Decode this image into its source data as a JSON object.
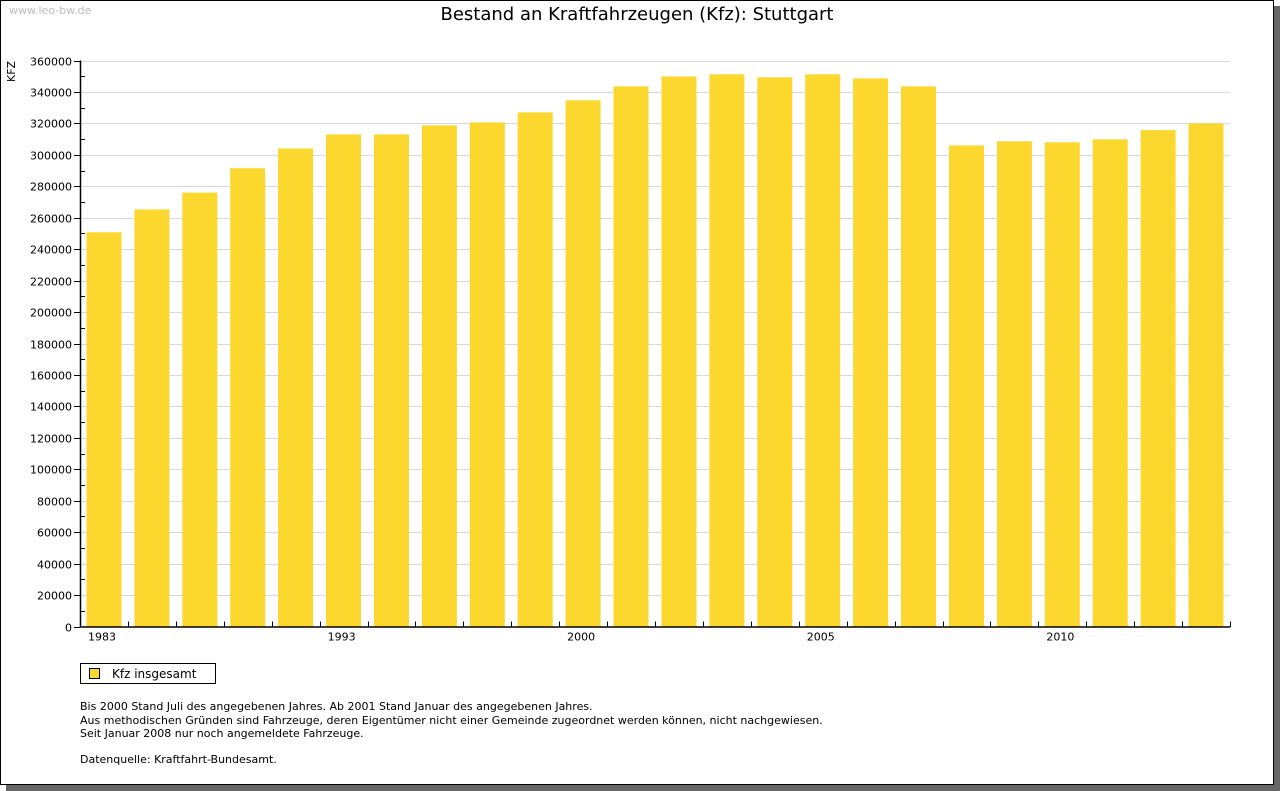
{
  "watermark": "www.leo-bw.de",
  "colors": {
    "bar": "#FCD72E",
    "grid": "#D9D9D9",
    "axis": "#000000",
    "shadow": "#666666"
  },
  "chart_data": {
    "type": "bar",
    "title": "Bestand an Kraftfahrzeugen (Kfz): Stuttgart",
    "xlabel": "",
    "ylabel": "KFZ",
    "ylim": [
      0,
      360000
    ],
    "yticks": [
      0,
      20000,
      40000,
      60000,
      80000,
      100000,
      120000,
      140000,
      160000,
      180000,
      200000,
      220000,
      240000,
      260000,
      280000,
      300000,
      320000,
      340000,
      360000
    ],
    "grid": true,
    "xtick_labels": [
      {
        "index": 0,
        "label": "1983"
      },
      {
        "index": 5,
        "label": "1993"
      },
      {
        "index": 10,
        "label": "2000"
      },
      {
        "index": 15,
        "label": "2005"
      },
      {
        "index": 20,
        "label": "2010"
      }
    ],
    "categories": [
      "1983",
      "",
      "",
      "",
      "",
      "1993",
      "",
      "",
      "",
      "",
      "2000",
      "",
      "",
      "",
      "",
      "2005",
      "",
      "",
      "",
      "",
      "2010",
      "",
      "",
      ""
    ],
    "series": [
      {
        "name": "Kfz insgesamt",
        "values": [
          250700,
          265300,
          276000,
          291500,
          304000,
          313000,
          313000,
          318700,
          320600,
          327000,
          334700,
          343500,
          349900,
          351200,
          349300,
          351200,
          348600,
          343500,
          306000,
          308600,
          308000,
          309900,
          315700,
          320000
        ]
      }
    ],
    "legend": {
      "position": "bottom-left",
      "entries": [
        "Kfz insgesamt"
      ]
    }
  },
  "notes": [
    "Bis 2000 Stand Juli des angegebenen Jahres. Ab 2001 Stand Januar des angegebenen Jahres.",
    "Aus methodischen Gründen sind Fahrzeuge, deren Eigentümer nicht einer Gemeinde zugeordnet werden können, nicht nachgewiesen.",
    "Seit Januar 2008 nur noch angemeldete Fahrzeuge."
  ],
  "source": "Datenquelle: Kraftfahrt-Bundesamt."
}
